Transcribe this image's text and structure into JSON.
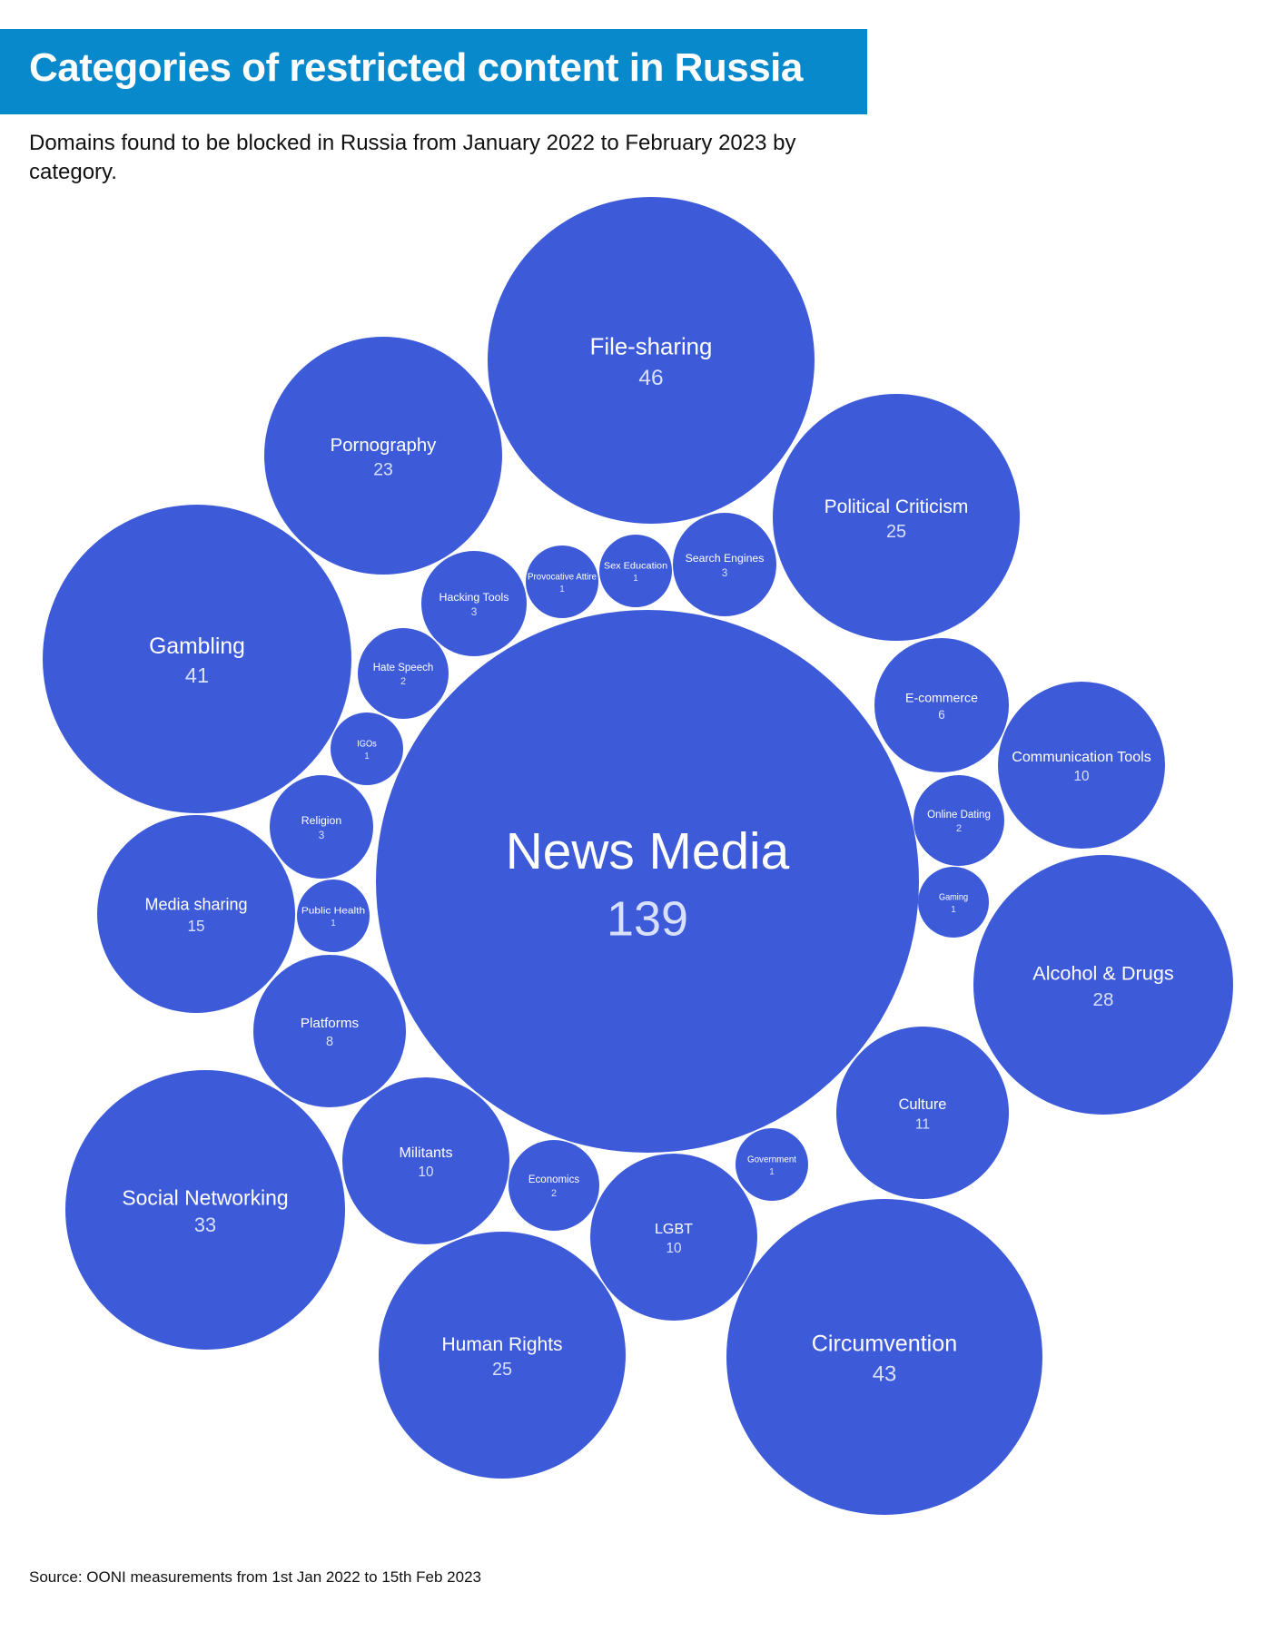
{
  "header": {
    "title": "Categories of restricted content in Russia",
    "subtitle": "Domains found to be blocked in Russia from January 2022 to February 2023 by category.",
    "source": "Source: OONI measurements from 1st Jan 2022 to 15th Feb 2023"
  },
  "colors": {
    "title_bar": "#0789cc",
    "bubble": "#3d5bd9",
    "label": "#ffffff"
  },
  "chart_data": {
    "type": "bubble",
    "title": "Categories of restricted content in Russia",
    "series": [
      {
        "label": "News Media",
        "value": 139
      },
      {
        "label": "File-sharing",
        "value": 46
      },
      {
        "label": "Circumvention",
        "value": 43
      },
      {
        "label": "Gambling",
        "value": 41
      },
      {
        "label": "Social Networking",
        "value": 33
      },
      {
        "label": "Alcohol & Drugs",
        "value": 28
      },
      {
        "label": "Political Criticism",
        "value": 25
      },
      {
        "label": "Human Rights",
        "value": 25
      },
      {
        "label": "Pornography",
        "value": 23
      },
      {
        "label": "Media sharing",
        "value": 15
      },
      {
        "label": "Culture",
        "value": 11
      },
      {
        "label": "Communication Tools",
        "value": 10
      },
      {
        "label": "Militants",
        "value": 10
      },
      {
        "label": "LGBT",
        "value": 10
      },
      {
        "label": "Platforms",
        "value": 8
      },
      {
        "label": "E-commerce",
        "value": 6
      },
      {
        "label": "Hacking Tools",
        "value": 3
      },
      {
        "label": "Search Engines",
        "value": 3
      },
      {
        "label": "Religion",
        "value": 3
      },
      {
        "label": "Hate Speech",
        "value": 2
      },
      {
        "label": "Online Dating",
        "value": 2
      },
      {
        "label": "Economics",
        "value": 2
      },
      {
        "label": "Provocative Attire",
        "value": 1
      },
      {
        "label": "Sex Education",
        "value": 1
      },
      {
        "label": "IGOs",
        "value": 1
      },
      {
        "label": "Public Health",
        "value": 1
      },
      {
        "label": "Gaming",
        "value": 1
      },
      {
        "label": "Government",
        "value": 1
      }
    ]
  }
}
